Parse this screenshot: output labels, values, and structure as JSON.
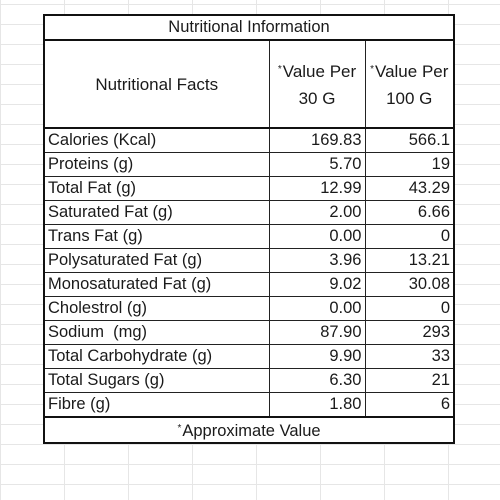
{
  "table": {
    "title": "Nutritional Information",
    "headers": {
      "facts": "Nutritional Facts",
      "per30": "Value Per 30 G",
      "per100": "Value Per 100 G",
      "marker": "*"
    },
    "rows": [
      {
        "label": "Calories (Kcal)",
        "per30": "169.83",
        "per100": "566.1"
      },
      {
        "label": "Proteins (g)",
        "per30": "5.70",
        "per100": "19"
      },
      {
        "label": "Total Fat (g)",
        "per30": "12.99",
        "per100": "43.29"
      },
      {
        "label": "Saturated Fat (g)",
        "per30": "2.00",
        "per100": "6.66"
      },
      {
        "label": "Trans Fat (g)",
        "per30": "0.00",
        "per100": "0"
      },
      {
        "label": "Polysaturated Fat (g)",
        "per30": "3.96",
        "per100": "13.21"
      },
      {
        "label": "Monosaturated Fat (g)",
        "per30": "9.02",
        "per100": "30.08"
      },
      {
        "label": "Cholestrol (g)",
        "per30": "0.00",
        "per100": "0"
      },
      {
        "label": "Sodium  (mg)",
        "per30": "87.90",
        "per100": "293"
      },
      {
        "label": "Total Carbohydrate (g)",
        "per30": "9.90",
        "per100": "33"
      },
      {
        "label": "Total Sugars (g)",
        "per30": "6.30",
        "per100": "21"
      },
      {
        "label": "Fibre (g)",
        "per30": "1.80",
        "per100": "6"
      }
    ],
    "footer": "Approximate Value"
  }
}
